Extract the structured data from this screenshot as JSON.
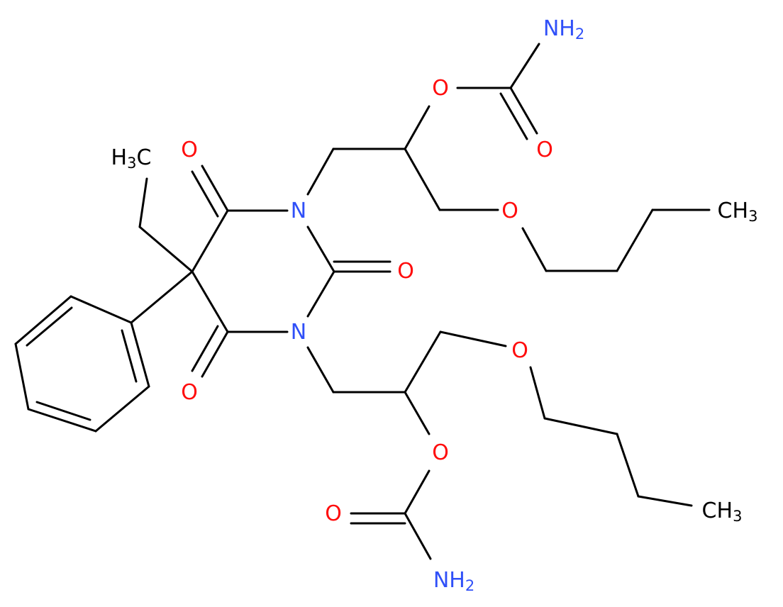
{
  "atoms": [
    {
      "text": "NH",
      "sub": "2"
    },
    {
      "text": "O"
    },
    {
      "text": "O"
    },
    {
      "text": "H",
      "sub": "3",
      "tail": "C"
    },
    {
      "text": "O"
    },
    {
      "text": "N"
    },
    {
      "text": "O"
    },
    {
      "text": "CH",
      "sub": "3"
    },
    {
      "text": "O"
    },
    {
      "text": "N"
    },
    {
      "text": "O"
    },
    {
      "text": "O"
    },
    {
      "text": "O"
    },
    {
      "text": "O"
    },
    {
      "text": "CH",
      "sub": "3"
    },
    {
      "text": "NH",
      "sub": "2"
    }
  ]
}
